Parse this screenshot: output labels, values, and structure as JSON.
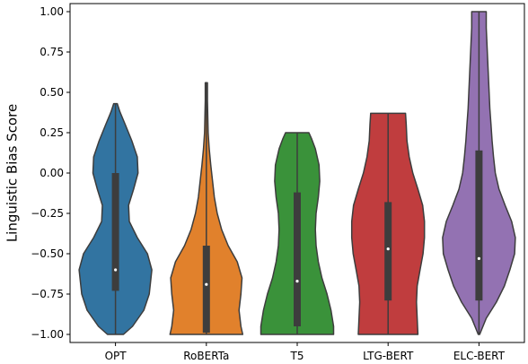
{
  "chart_data": {
    "type": "violin",
    "title": "",
    "xlabel": "",
    "ylabel": "Linguistic Bias Score",
    "ylim": [
      -1.05,
      1.05
    ],
    "yticks": [
      -1.0,
      -0.75,
      -0.5,
      -0.25,
      0.0,
      0.25,
      0.5,
      0.75,
      1.0
    ],
    "ytick_labels": [
      "−1.00",
      "−0.75",
      "−0.50",
      "−0.25",
      "0.00",
      "0.25",
      "0.50",
      "0.75",
      "1.00"
    ],
    "categories": [
      "OPT",
      "RoBERTa",
      "T5",
      "LTG-BERT",
      "ELC-BERT"
    ],
    "grid": false,
    "series": [
      {
        "category": "OPT",
        "color": "#3274a1",
        "min": -1.0,
        "max": 0.43,
        "q1": -0.73,
        "median": -0.6,
        "q3": 0.0,
        "profile": [
          [
            -1.0,
            0.22
          ],
          [
            -0.95,
            0.47
          ],
          [
            -0.85,
            0.78
          ],
          [
            -0.75,
            0.93
          ],
          [
            -0.6,
            1.0
          ],
          [
            -0.5,
            0.88
          ],
          [
            -0.4,
            0.6
          ],
          [
            -0.3,
            0.38
          ],
          [
            -0.2,
            0.36
          ],
          [
            -0.1,
            0.5
          ],
          [
            0.0,
            0.62
          ],
          [
            0.1,
            0.6
          ],
          [
            0.2,
            0.45
          ],
          [
            0.3,
            0.27
          ],
          [
            0.38,
            0.12
          ],
          [
            0.43,
            0.05
          ]
        ]
      },
      {
        "category": "RoBERTa",
        "color": "#e1812c",
        "min": -1.0,
        "max": 0.56,
        "q1": -0.99,
        "median": -0.69,
        "q3": -0.45,
        "profile": [
          [
            -1.0,
            1.0
          ],
          [
            -0.95,
            0.95
          ],
          [
            -0.85,
            0.9
          ],
          [
            -0.75,
            0.95
          ],
          [
            -0.65,
            0.98
          ],
          [
            -0.55,
            0.85
          ],
          [
            -0.45,
            0.6
          ],
          [
            -0.35,
            0.42
          ],
          [
            -0.25,
            0.3
          ],
          [
            -0.15,
            0.22
          ],
          [
            -0.05,
            0.17
          ],
          [
            0.05,
            0.12
          ],
          [
            0.15,
            0.08
          ],
          [
            0.25,
            0.05
          ],
          [
            0.35,
            0.04
          ],
          [
            0.45,
            0.03
          ],
          [
            0.56,
            0.03
          ]
        ]
      },
      {
        "category": "T5",
        "color": "#3a923a",
        "min": -1.0,
        "max": 0.25,
        "q1": -0.95,
        "median": -0.67,
        "q3": -0.12,
        "profile": [
          [
            -1.0,
            1.0
          ],
          [
            -0.95,
            1.0
          ],
          [
            -0.85,
            0.93
          ],
          [
            -0.75,
            0.82
          ],
          [
            -0.65,
            0.68
          ],
          [
            -0.55,
            0.58
          ],
          [
            -0.45,
            0.52
          ],
          [
            -0.35,
            0.5
          ],
          [
            -0.25,
            0.52
          ],
          [
            -0.15,
            0.58
          ],
          [
            -0.05,
            0.62
          ],
          [
            0.05,
            0.6
          ],
          [
            0.15,
            0.5
          ],
          [
            0.21,
            0.4
          ],
          [
            0.25,
            0.32
          ]
        ]
      },
      {
        "category": "LTG-BERT",
        "color": "#c03d3e",
        "min": -1.0,
        "max": 0.37,
        "q1": -0.79,
        "median": -0.47,
        "q3": -0.18,
        "profile": [
          [
            -1.0,
            0.82
          ],
          [
            -0.9,
            0.8
          ],
          [
            -0.8,
            0.78
          ],
          [
            -0.7,
            0.8
          ],
          [
            -0.6,
            0.88
          ],
          [
            -0.5,
            0.96
          ],
          [
            -0.4,
            1.0
          ],
          [
            -0.3,
            1.0
          ],
          [
            -0.2,
            0.95
          ],
          [
            -0.1,
            0.82
          ],
          [
            0.0,
            0.68
          ],
          [
            0.1,
            0.58
          ],
          [
            0.2,
            0.52
          ],
          [
            0.3,
            0.5
          ],
          [
            0.37,
            0.48
          ]
        ]
      },
      {
        "category": "ELC-BERT",
        "color": "#9372b2",
        "min": -1.0,
        "max": 1.0,
        "q1": -0.79,
        "median": -0.53,
        "q3": 0.14,
        "profile": [
          [
            -1.0,
            0.02
          ],
          [
            -0.9,
            0.2
          ],
          [
            -0.8,
            0.48
          ],
          [
            -0.7,
            0.7
          ],
          [
            -0.6,
            0.85
          ],
          [
            -0.5,
            0.98
          ],
          [
            -0.4,
            1.0
          ],
          [
            -0.3,
            0.9
          ],
          [
            -0.2,
            0.72
          ],
          [
            -0.1,
            0.55
          ],
          [
            0.0,
            0.45
          ],
          [
            0.1,
            0.4
          ],
          [
            0.2,
            0.36
          ],
          [
            0.3,
            0.33
          ],
          [
            0.4,
            0.3
          ],
          [
            0.5,
            0.28
          ],
          [
            0.6,
            0.26
          ],
          [
            0.7,
            0.24
          ],
          [
            0.8,
            0.22
          ],
          [
            0.9,
            0.2
          ],
          [
            0.95,
            0.2
          ],
          [
            1.0,
            0.2
          ]
        ]
      }
    ]
  }
}
